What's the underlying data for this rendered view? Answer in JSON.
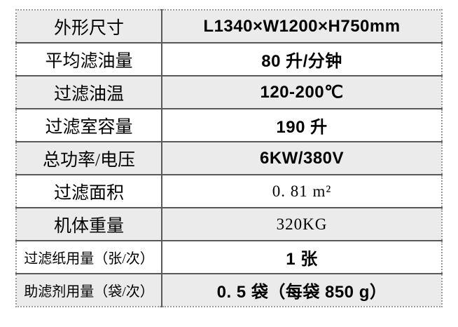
{
  "table": {
    "rows": [
      {
        "label": "外形尺寸",
        "value": "L1340×W1200×H750mm",
        "alt_font": false
      },
      {
        "label": "平均滤油量",
        "value": "80 升/分钟",
        "alt_font": false
      },
      {
        "label": "过滤油温",
        "value": "120-200℃",
        "alt_font": false
      },
      {
        "label": "过滤室容量",
        "value": "190 升",
        "alt_font": false
      },
      {
        "label": "总功率/电压",
        "value": "6KW/380V",
        "alt_font": false
      },
      {
        "label": "过滤面积",
        "value": "0. 81 m²",
        "alt_font": true
      },
      {
        "label": "机体重量",
        "value": "320KG",
        "alt_font": true
      },
      {
        "label": "过滤纸用量（张/次）",
        "value": "1 张",
        "alt_font": false
      },
      {
        "label": "助滤剂用量（袋/次）",
        "value": "0. 5 袋（每袋 850 g）",
        "alt_font": false
      }
    ],
    "colors": {
      "stripe_row_bg": "#ebebeb",
      "plain_row_bg": "#ffffff",
      "inner_border": "#595959",
      "outer_border": "#9a9a9a",
      "text": "#000000"
    }
  }
}
